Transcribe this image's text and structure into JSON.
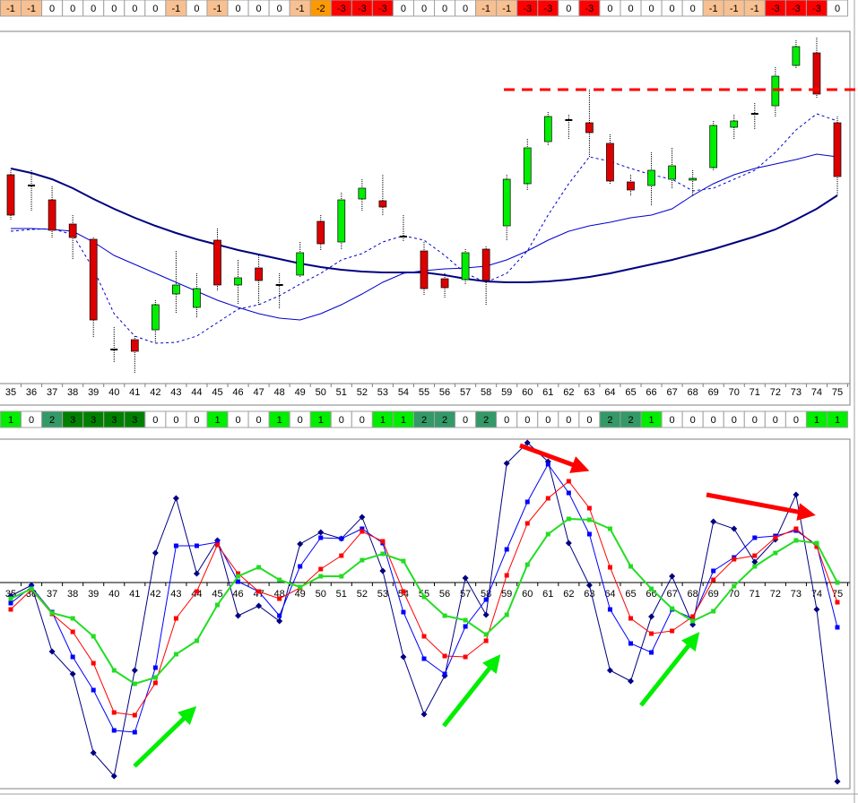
{
  "top_signals": [
    -1,
    -1,
    0,
    0,
    0,
    0,
    0,
    0,
    -1,
    0,
    -1,
    0,
    0,
    0,
    -1,
    -2,
    -3,
    -3,
    -3,
    0,
    0,
    0,
    0,
    -1,
    -1,
    -3,
    -3,
    0,
    -3,
    0,
    0,
    0,
    0,
    0,
    -1,
    -1,
    -1,
    -3,
    -3,
    -3,
    0
  ],
  "bottom_signals": [
    1,
    0,
    2,
    3,
    3,
    3,
    3,
    0,
    0,
    0,
    1,
    0,
    0,
    1,
    0,
    1,
    0,
    0,
    1,
    1,
    2,
    2,
    0,
    2,
    0,
    0,
    0,
    0,
    0,
    2,
    2,
    1,
    0,
    0,
    0,
    0,
    0,
    0,
    0,
    1,
    1
  ],
  "signal_colors": {
    "-3": "#ff0000",
    "-2": "#ff9900",
    "-1": "#f8c090",
    "0": "#ffffff",
    "1": "#00ee00",
    "2": "#339966",
    "3": "#008000"
  },
  "chart_data": [
    {
      "type": "candlestick",
      "categories": [
        "35",
        "36",
        "37",
        "38",
        "39",
        "40",
        "41",
        "42",
        "43",
        "44",
        "45",
        "46",
        "47",
        "48",
        "49",
        "50",
        "51",
        "52",
        "53",
        "54",
        "55",
        "56",
        "57",
        "58",
        "59",
        "60",
        "61",
        "62",
        "63",
        "64",
        "65",
        "66",
        "67",
        "68",
        "69",
        "70",
        "71",
        "72",
        "73",
        "74",
        "75"
      ],
      "open": [
        245,
        233,
        217,
        190,
        173,
        50,
        61,
        72,
        112,
        97,
        172,
        122,
        141,
        122,
        133,
        193,
        170,
        218,
        216,
        176,
        160,
        129,
        128,
        162,
        188,
        235,
        282,
        306,
        303,
        280,
        237,
        233,
        240,
        239,
        253,
        298,
        313,
        322,
        367,
        381,
        303
      ],
      "close": [
        200,
        233,
        183,
        175,
        83,
        50,
        48,
        100,
        122,
        118,
        122,
        130,
        127,
        122,
        158,
        168,
        217,
        230,
        209,
        176,
        118,
        119,
        158,
        127,
        240,
        275,
        310,
        306,
        292,
        238,
        228,
        250,
        255,
        241,
        300,
        305,
        313,
        355,
        388,
        335,
        243
      ],
      "high": [
        250,
        250,
        232,
        200,
        175,
        75,
        65,
        105,
        160,
        135,
        185,
        150,
        155,
        135,
        170,
        200,
        225,
        240,
        245,
        200,
        170,
        135,
        162,
        165,
        245,
        285,
        315,
        312,
        340,
        290,
        245,
        270,
        275,
        250,
        305,
        312,
        325,
        365,
        395,
        398,
        310
      ],
      "low": [
        195,
        205,
        175,
        150,
        63,
        35,
        23,
        58,
        90,
        85,
        115,
        100,
        100,
        95,
        130,
        160,
        162,
        205,
        200,
        170,
        110,
        108,
        122,
        100,
        172,
        228,
        278,
        285,
        265,
        235,
        222,
        210,
        230,
        220,
        250,
        285,
        295,
        310,
        363,
        330,
        222
      ],
      "up_color": "#00ee00",
      "down_color": "#dd0000",
      "series": [
        {
          "color": "#000080",
          "style": "thick",
          "values": [
            252,
            247,
            240,
            230,
            218,
            207,
            197,
            188,
            180,
            173,
            167,
            161,
            156,
            151,
            146,
            142,
            139,
            137,
            136,
            136,
            136,
            133,
            129,
            126,
            125,
            125,
            126,
            128,
            131,
            135,
            140,
            145,
            150,
            156,
            162,
            169,
            176,
            184,
            195,
            207,
            222
          ]
        },
        {
          "color": "#0000cc",
          "style": "solid",
          "values": [
            185,
            185,
            184,
            182,
            170,
            155,
            145,
            135,
            125,
            115,
            105,
            97,
            90,
            85,
            83,
            90,
            100,
            112,
            125,
            135,
            138,
            140,
            141,
            143,
            150,
            160,
            172,
            182,
            188,
            192,
            197,
            200,
            207,
            222,
            235,
            245,
            252,
            257,
            262,
            268,
            265
          ]
        },
        {
          "color": "#0000cc",
          "style": "dashed",
          "values": [
            182,
            184,
            185,
            178,
            140,
            90,
            65,
            57,
            58,
            65,
            80,
            95,
            100,
            110,
            123,
            135,
            150,
            157,
            170,
            177,
            172,
            155,
            135,
            125,
            135,
            160,
            200,
            235,
            265,
            260,
            252,
            245,
            240,
            227,
            230,
            240,
            250,
            270,
            295,
            313,
            305
          ]
        }
      ],
      "resistance": {
        "value": 340,
        "color": "#ff0000"
      },
      "ylim": [
        0,
        405
      ]
    },
    {
      "type": "line",
      "categories": [
        "35",
        "36",
        "37",
        "38",
        "39",
        "40",
        "41",
        "42",
        "43",
        "44",
        "45",
        "46",
        "47",
        "48",
        "49",
        "50",
        "51",
        "52",
        "53",
        "54",
        "55",
        "56",
        "57",
        "58",
        "59",
        "60",
        "61",
        "62",
        "63",
        "64",
        "65",
        "66",
        "67",
        "68",
        "69",
        "70",
        "71",
        "72",
        "73",
        "74",
        "75"
      ],
      "series": [
        {
          "color": "#000080",
          "marker": "diamond",
          "style": "solid",
          "values": [
            -15,
            -3,
            -77,
            -102,
            -190,
            -216,
            -98,
            33,
            94,
            10,
            47,
            -37,
            -26,
            -43,
            43,
            56,
            49,
            73,
            13,
            -83,
            -147,
            -104,
            5,
            -36,
            133,
            156,
            135,
            44,
            -3,
            -98,
            -110,
            -38,
            7,
            -47,
            68,
            60,
            23,
            48,
            98,
            -30,
            -222
          ]
        },
        {
          "color": "#0000ff",
          "marker": "square",
          "style": "solid",
          "values": [
            -23,
            -5,
            -33,
            -83,
            -120,
            -165,
            -167,
            -95,
            41,
            41,
            45,
            1,
            -10,
            -37,
            18,
            50,
            49,
            60,
            44,
            -33,
            -85,
            -102,
            -49,
            -19,
            37,
            90,
            132,
            100,
            54,
            -30,
            -68,
            -78,
            -30,
            -40,
            13,
            28,
            50,
            52,
            58,
            42,
            -50
          ]
        },
        {
          "color": "#ff0000",
          "marker": "square",
          "style": "solid",
          "values": [
            -30,
            -8,
            -35,
            -55,
            -90,
            -145,
            -148,
            -112,
            -40,
            -10,
            42,
            10,
            -10,
            -18,
            -6,
            15,
            30,
            57,
            46,
            -10,
            -60,
            -82,
            -83,
            -65,
            8,
            66,
            94,
            113,
            83,
            17,
            -40,
            -57,
            -54,
            -38,
            3,
            26,
            30,
            50,
            60,
            40,
            -22
          ]
        },
        {
          "color": "#22dd22",
          "marker": "square",
          "style": "thick",
          "values": [
            -18,
            -7,
            -34,
            -40,
            -60,
            -98,
            -113,
            -106,
            -80,
            -65,
            -25,
            7,
            17,
            3,
            -5,
            7,
            7,
            25,
            32,
            24,
            -16,
            -37,
            -42,
            -58,
            -36,
            20,
            54,
            71,
            70,
            60,
            18,
            -7,
            -29,
            -43,
            -32,
            -4,
            18,
            33,
            47,
            44,
            0
          ]
        }
      ],
      "ylim": [
        -230,
        160
      ]
    }
  ]
}
